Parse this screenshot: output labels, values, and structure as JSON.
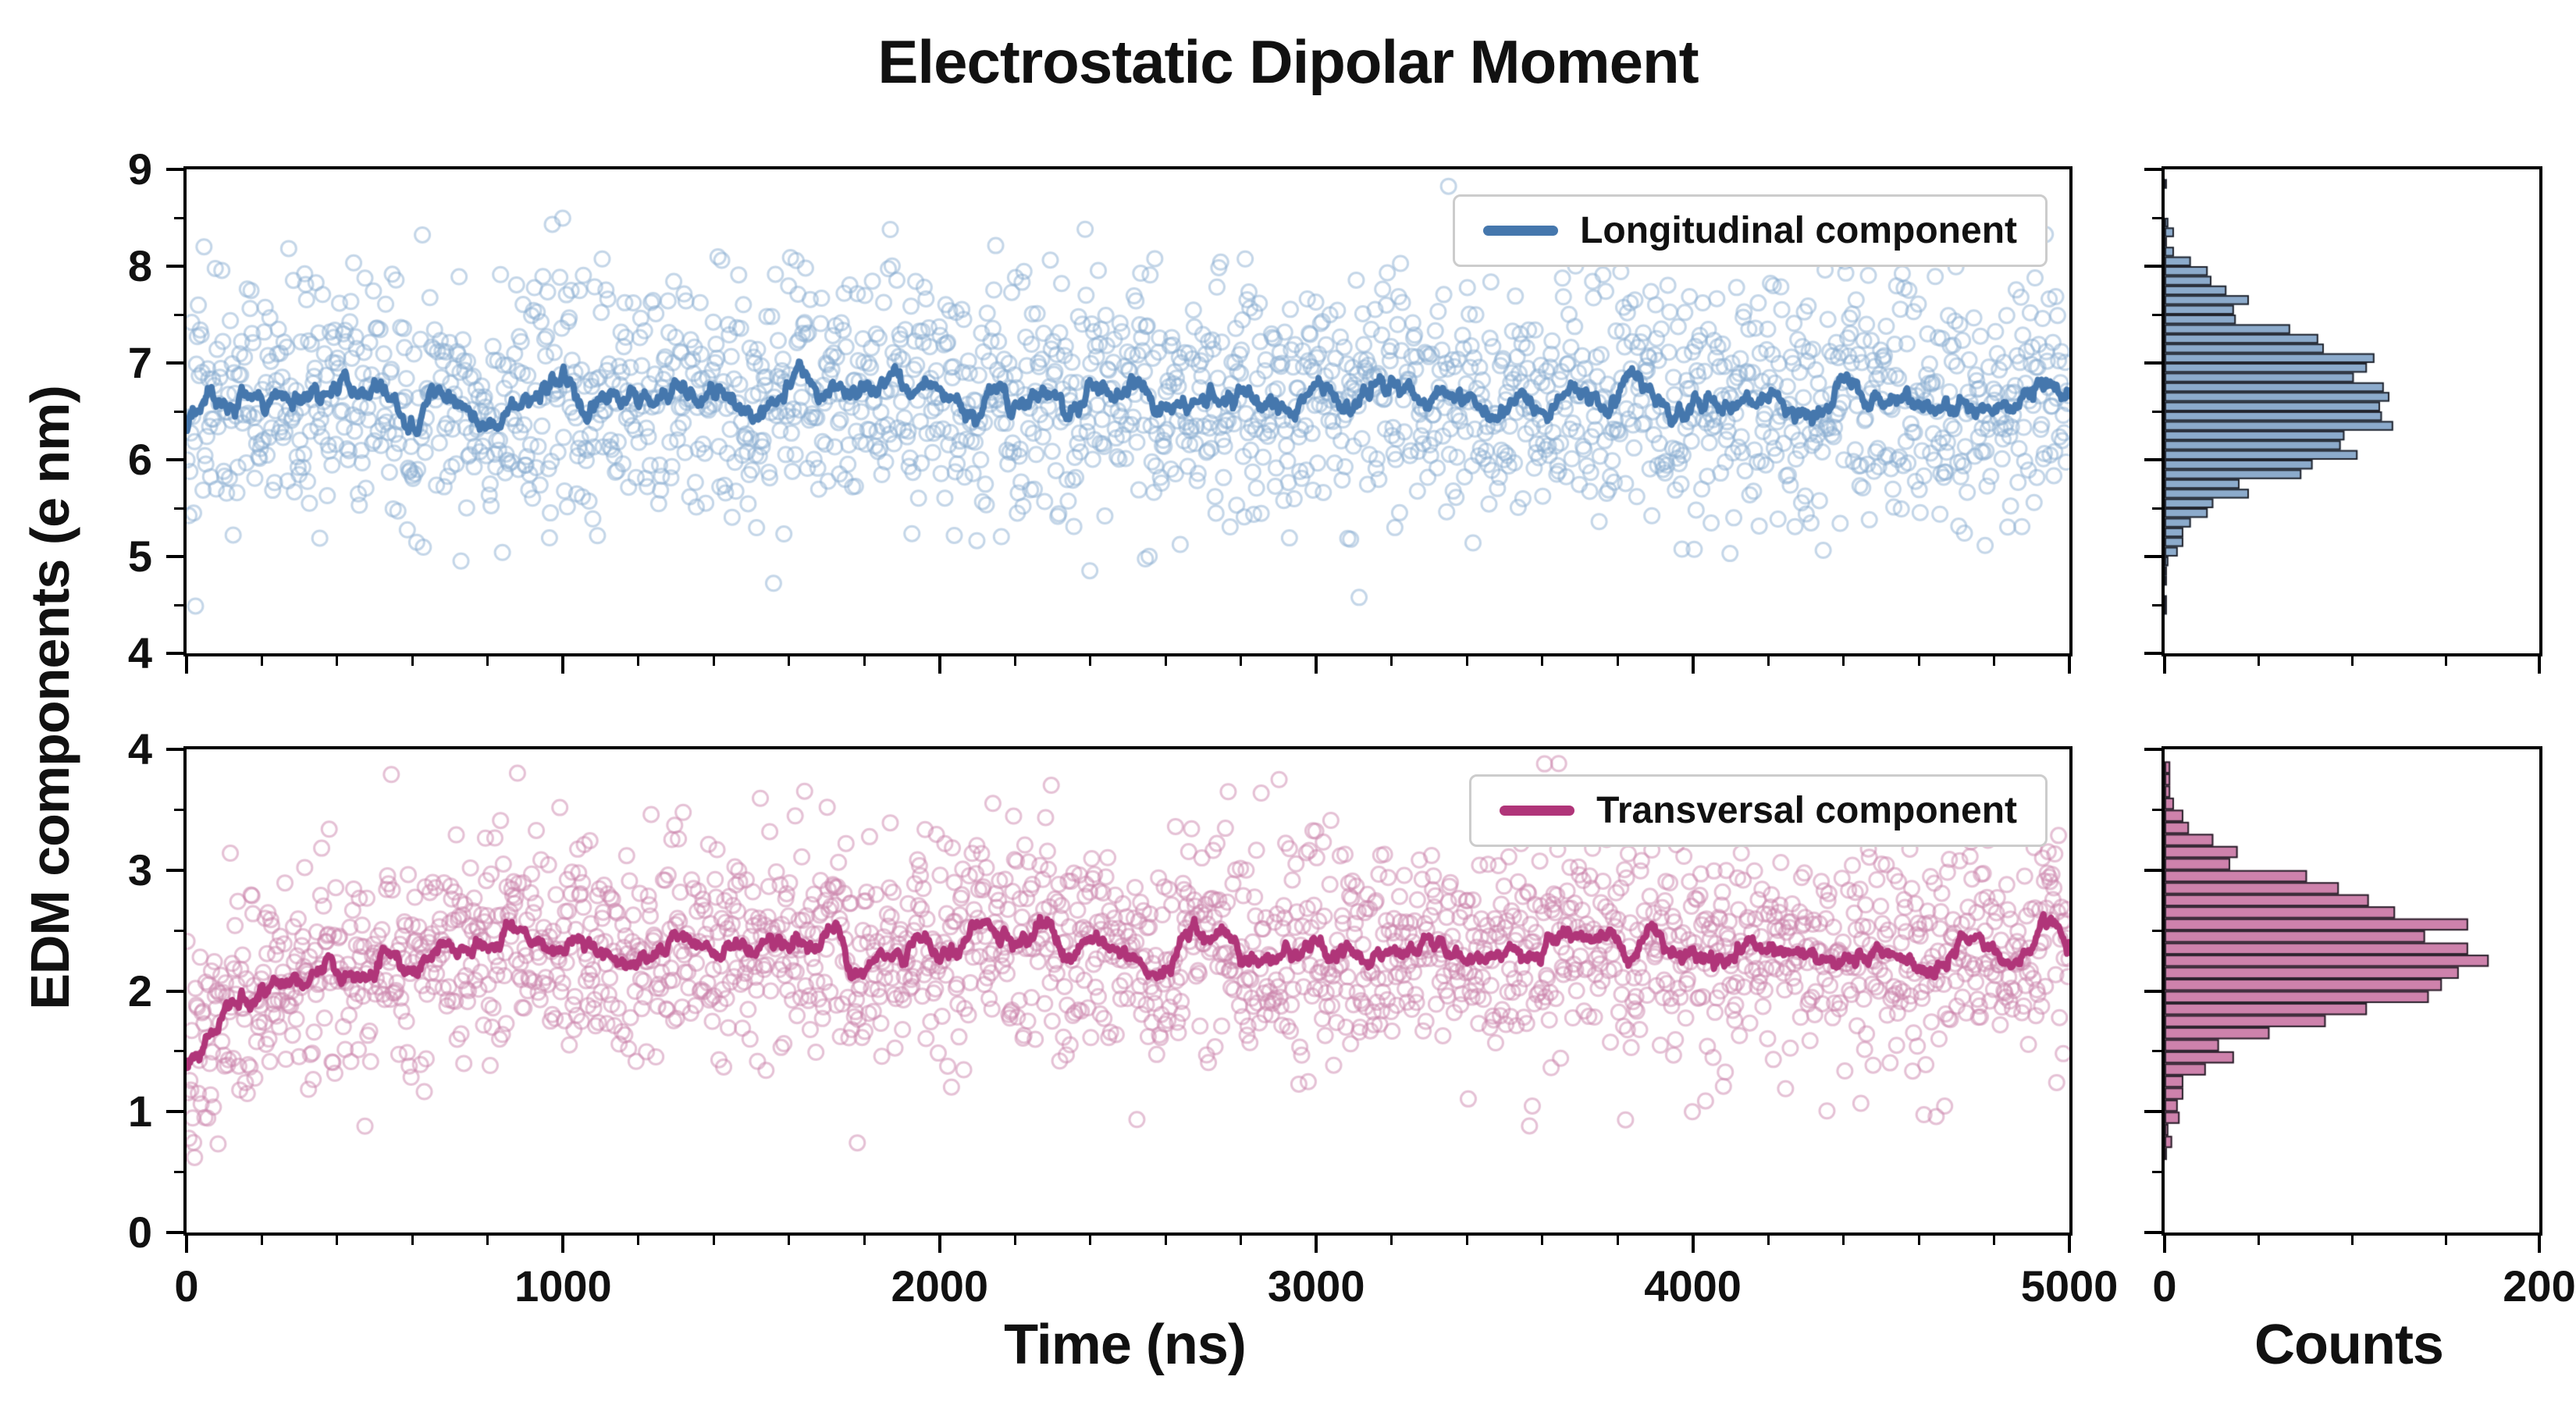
{
  "chart_data": {
    "type": "scatter",
    "title": "Electrostatic Dipolar Moment",
    "xlabel": "Time (ns)",
    "ylabel": "EDM components (e nm)",
    "counts_label": "Counts",
    "grid": false,
    "legend_position": "upper right",
    "x_range": [
      0,
      5000
    ],
    "x_ticks": [
      0,
      1000,
      2000,
      3000,
      4000,
      5000
    ],
    "x_minor_step": 200,
    "counts_range": [
      0,
      200
    ],
    "counts_ticks": [
      0,
      200
    ],
    "counts_minor_step": 50,
    "panels": [
      {
        "name": "longitudinal",
        "legend": "Longitudinal component",
        "color": "#4577ad",
        "scatter_color": "#8aaed2",
        "y_range": [
          4,
          9
        ],
        "y_ticks": [
          4,
          5,
          6,
          7,
          8,
          9
        ],
        "y_minor_step": 0.5,
        "n_points": 2000,
        "mean": 6.62,
        "std": 0.65,
        "equilibration": null,
        "line_window": 12,
        "hist_bin_width": 0.1,
        "seed": 42
      },
      {
        "name": "transversal",
        "legend": "Transversal component",
        "color": "#b03579",
        "scatter_color": "#cc84ab",
        "y_range": [
          0,
          4
        ],
        "y_ticks": [
          0,
          1,
          2,
          3,
          4
        ],
        "y_minor_step": 0.5,
        "n_points": 2000,
        "mean": 2.36,
        "std": 0.45,
        "equilibration": {
          "drop": 1.2,
          "tau": 160
        },
        "line_window": 12,
        "hist_bin_width": 0.1,
        "seed": 7
      }
    ]
  }
}
